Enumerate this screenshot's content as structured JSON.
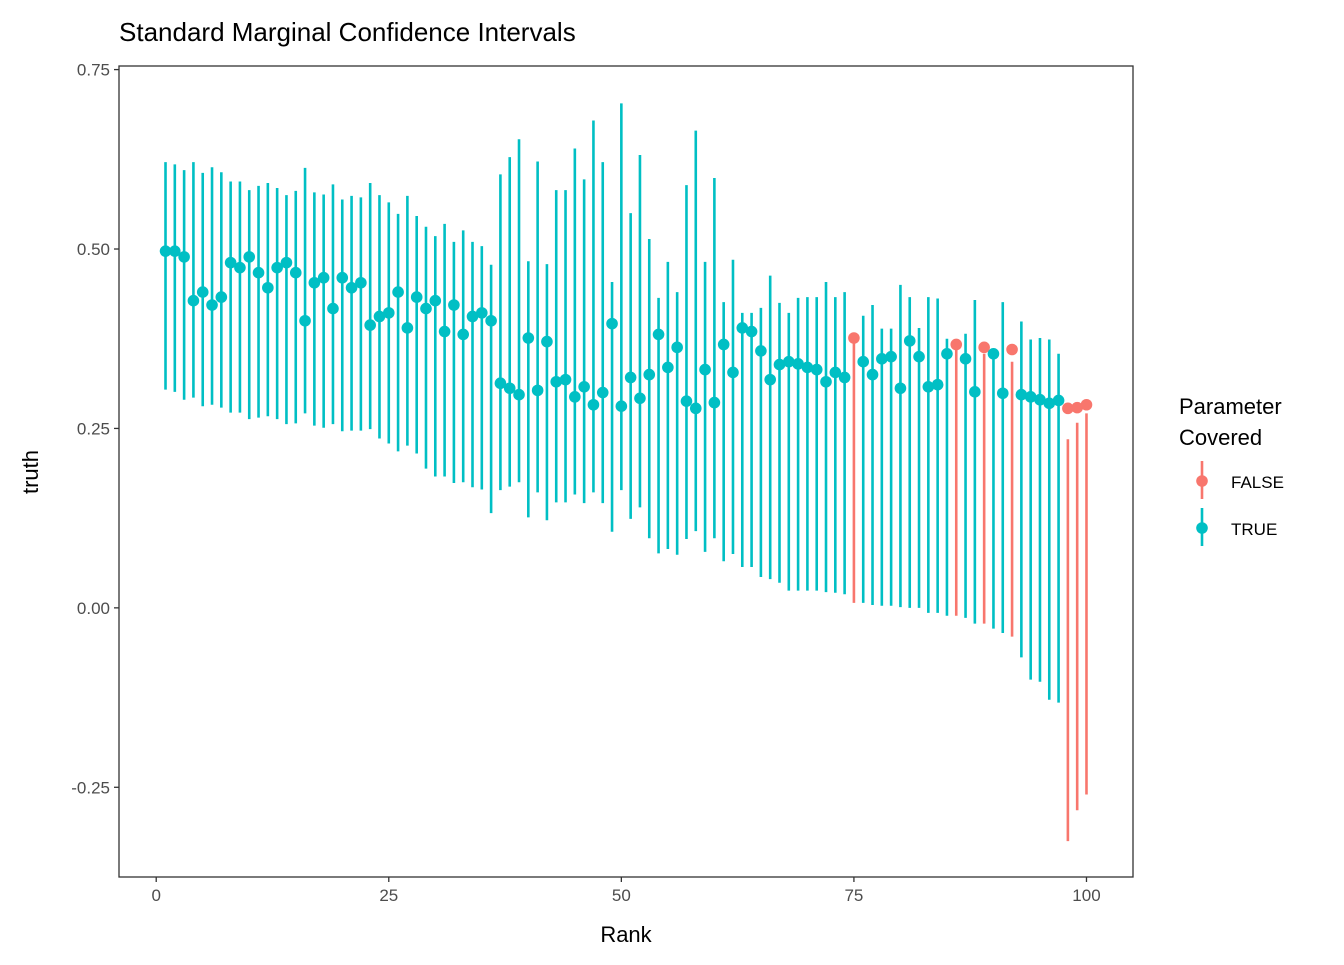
{
  "chart_data": {
    "type": "errorbar",
    "title": "Standard Marginal Confidence Intervals",
    "xlabel": "Rank",
    "ylabel": "truth",
    "xlim": [
      -4,
      105
    ],
    "ylim": [
      -0.375,
      0.755
    ],
    "xticks": [
      0,
      25,
      50,
      75,
      100
    ],
    "xtick_labels": [
      "0",
      "25",
      "50",
      "75",
      "100"
    ],
    "yticks": [
      -0.25,
      0,
      0.25,
      0.5,
      0.75
    ],
    "ytick_labels": [
      "-0.25",
      "0.00",
      "0.25",
      "0.50",
      "0.75"
    ],
    "grid": false,
    "legend": {
      "title": "Parameter\nCovered",
      "title_lines": [
        "Parameter",
        "Covered"
      ],
      "position": "right",
      "entries": [
        {
          "label": "FALSE",
          "color": "#F8766D"
        },
        {
          "label": "TRUE",
          "color": "#00BFC4"
        }
      ]
    },
    "colors": {
      "FALSE": "#F8766D",
      "TRUE": "#00BFC4"
    },
    "rank": [
      1,
      2,
      3,
      4,
      5,
      6,
      7,
      8,
      9,
      10,
      11,
      12,
      13,
      14,
      15,
      16,
      17,
      18,
      19,
      20,
      21,
      22,
      23,
      24,
      25,
      26,
      27,
      28,
      29,
      30,
      31,
      32,
      33,
      34,
      35,
      36,
      37,
      38,
      39,
      40,
      41,
      42,
      43,
      44,
      45,
      46,
      47,
      48,
      49,
      50,
      51,
      52,
      53,
      54,
      55,
      56,
      57,
      58,
      59,
      60,
      61,
      62,
      63,
      64,
      65,
      66,
      67,
      68,
      69,
      70,
      71,
      72,
      73,
      74,
      75,
      76,
      77,
      78,
      79,
      80,
      81,
      82,
      83,
      84,
      85,
      86,
      87,
      88,
      89,
      90,
      91,
      92,
      93,
      94,
      95,
      96,
      97,
      98,
      99,
      100
    ],
    "truth": [
      0.497,
      0.497,
      0.489,
      0.428,
      0.44,
      0.422,
      0.433,
      0.481,
      0.474,
      0.489,
      0.467,
      0.446,
      0.474,
      0.481,
      0.467,
      0.4,
      0.453,
      0.46,
      0.417,
      0.46,
      0.446,
      0.453,
      0.394,
      0.406,
      0.411,
      0.44,
      0.39,
      0.433,
      0.417,
      0.428,
      0.385,
      0.422,
      0.381,
      0.406,
      0.411,
      0.4,
      0.313,
      0.306,
      0.297,
      0.376,
      0.303,
      0.371,
      0.315,
      0.318,
      0.294,
      0.308,
      0.283,
      0.3,
      0.396,
      0.281,
      0.321,
      0.292,
      0.325,
      0.381,
      0.335,
      0.363,
      0.288,
      0.278,
      0.332,
      0.286,
      0.367,
      0.328,
      0.39,
      0.385,
      0.358,
      0.318,
      0.339,
      0.343,
      0.34,
      0.335,
      0.332,
      0.315,
      0.328,
      0.321,
      0.376,
      0.343,
      0.325,
      0.347,
      0.35,
      0.306,
      0.372,
      0.35,
      0.308,
      0.311,
      0.354,
      0.367,
      0.347,
      0.301,
      0.363,
      0.354,
      0.299,
      0.36,
      0.297,
      0.294,
      0.29,
      0.285,
      0.289,
      0.278,
      0.279,
      0.283
    ],
    "lower": [
      0.304,
      0.301,
      0.29,
      0.293,
      0.281,
      0.283,
      0.279,
      0.272,
      0.272,
      0.263,
      0.265,
      0.267,
      0.263,
      0.256,
      0.257,
      0.271,
      0.254,
      0.251,
      0.256,
      0.246,
      0.247,
      0.247,
      0.249,
      0.236,
      0.229,
      0.218,
      0.226,
      0.215,
      0.194,
      0.183,
      0.183,
      0.174,
      0.175,
      0.168,
      0.165,
      0.132,
      0.164,
      0.169,
      0.175,
      0.126,
      0.161,
      0.122,
      0.147,
      0.147,
      0.158,
      0.146,
      0.161,
      0.146,
      0.106,
      0.164,
      0.124,
      0.14,
      0.097,
      0.076,
      0.082,
      0.074,
      0.096,
      0.107,
      0.078,
      0.097,
      0.065,
      0.075,
      0.057,
      0.057,
      0.043,
      0.04,
      0.035,
      0.024,
      0.024,
      0.024,
      0.024,
      0.022,
      0.021,
      0.019,
      0.007,
      0.007,
      0.004,
      0.003,
      0.003,
      0.001,
      0.0,
      0.0,
      -0.007,
      -0.007,
      -0.011,
      -0.011,
      -0.014,
      -0.022,
      -0.022,
      -0.029,
      -0.035,
      -0.04,
      -0.069,
      -0.1,
      -0.103,
      -0.128,
      -0.132,
      -0.325,
      -0.282,
      -0.26
    ],
    "upper": [
      0.621,
      0.618,
      0.61,
      0.621,
      0.606,
      0.614,
      0.607,
      0.594,
      0.594,
      0.582,
      0.588,
      0.592,
      0.585,
      0.575,
      0.581,
      0.613,
      0.579,
      0.576,
      0.59,
      0.569,
      0.574,
      0.572,
      0.592,
      0.575,
      0.565,
      0.549,
      0.574,
      0.546,
      0.531,
      0.518,
      0.535,
      0.51,
      0.526,
      0.51,
      0.504,
      0.478,
      0.604,
      0.628,
      0.653,
      0.483,
      0.622,
      0.479,
      0.582,
      0.582,
      0.64,
      0.597,
      0.679,
      0.621,
      0.454,
      0.703,
      0.55,
      0.631,
      0.514,
      0.432,
      0.482,
      0.44,
      0.589,
      0.665,
      0.482,
      0.599,
      0.426,
      0.485,
      0.411,
      0.411,
      0.418,
      0.463,
      0.425,
      0.411,
      0.432,
      0.433,
      0.433,
      0.454,
      0.433,
      0.44,
      0.369,
      0.407,
      0.422,
      0.389,
      0.389,
      0.45,
      0.433,
      0.39,
      0.433,
      0.431,
      0.375,
      0.36,
      0.382,
      0.429,
      0.354,
      0.361,
      0.426,
      0.343,
      0.399,
      0.374,
      0.376,
      0.374,
      0.354,
      0.235,
      0.258,
      0.271
    ]
  }
}
